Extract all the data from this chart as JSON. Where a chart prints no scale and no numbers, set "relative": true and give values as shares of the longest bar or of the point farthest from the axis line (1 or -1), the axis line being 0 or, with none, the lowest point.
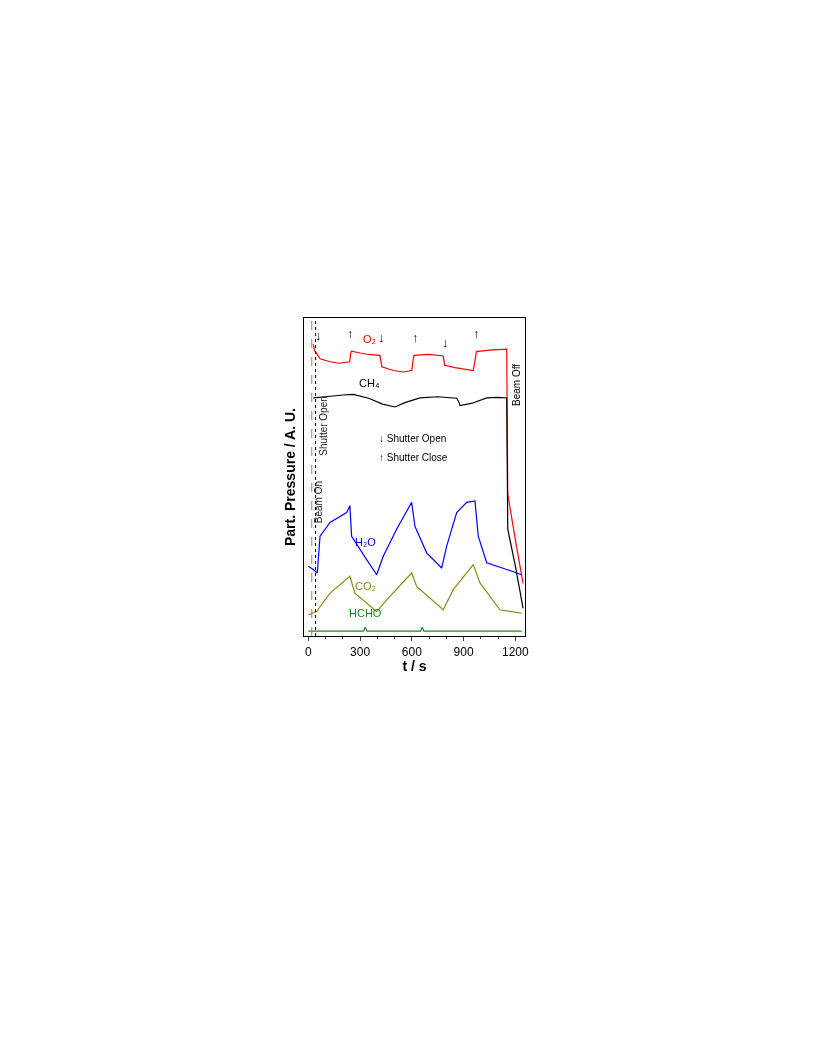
{
  "chart_data": {
    "type": "line",
    "relative": true,
    "xlabel": "t / s",
    "ylabel": "Part. Pressure / A. U.",
    "xlim": [
      -25,
      1256
    ],
    "xticks": [
      0,
      300,
      600,
      900,
      1200
    ],
    "legend": false,
    "series": [
      {
        "name": "O₂",
        "color": "#ff0000",
        "x": [
          29,
          35,
          68,
          126,
          180,
          240,
          246,
          250,
          300,
          350,
          415,
          420,
          426,
          493,
          550,
          600,
          606,
          612,
          700,
          782,
          786,
          790,
          850,
          956,
          968,
          974,
          1050,
          1150,
          1156,
          1200,
          1245
        ],
        "values": [
          1,
          0.98,
          0.95,
          0.94,
          0.935,
          0.94,
          0.97,
          0.976,
          0.97,
          0.965,
          0.962,
          0.945,
          0.923,
          0.91,
          0.905,
          0.91,
          0.94,
          0.962,
          0.965,
          0.96,
          0.945,
          0.928,
          0.92,
          0.91,
          0.95,
          0.975,
          0.98,
          0.983,
          0.486,
          0.33,
          0.18
        ]
      },
      {
        "name": "CH₄",
        "color": "#000000",
        "x": [
          29,
          100,
          200,
          260,
          350,
          430,
          502,
          560,
          647,
          750,
          860,
          875,
          879,
          950,
          1034,
          1100,
          1150,
          1153,
          1156,
          1200,
          1245
        ],
        "values": [
          0.816,
          0.82,
          0.826,
          0.828,
          0.815,
          0.795,
          0.785,
          0.8,
          0.816,
          0.82,
          0.815,
          0.8,
          0.79,
          0.798,
          0.816,
          0.818,
          0.816,
          0.6,
          0.366,
          0.24,
          0.095
        ]
      },
      {
        "name": "H₂O",
        "color": "#0000ff",
        "x": [
          0,
          29,
          52,
          68,
          126,
          222,
          241,
          251,
          338,
          396,
          435,
          512,
          599,
          618,
          686,
          773,
          802,
          860,
          918,
          966,
          985,
          1034,
          1150,
          1237
        ],
        "values": [
          0.239,
          0.228,
          0.216,
          0.342,
          0.389,
          0.423,
          0.446,
          0.342,
          0.262,
          0.21,
          0.274,
          0.366,
          0.458,
          0.376,
          0.285,
          0.233,
          0.308,
          0.423,
          0.458,
          0.463,
          0.342,
          0.251,
          0.228,
          0.21
        ]
      },
      {
        "name": "CO₂",
        "color": "#8b8b1a",
        "x": [
          0,
          48,
          126,
          241,
          270,
          396,
          473,
          599,
          628,
          782,
          840,
          956,
          995,
          1111,
          1237
        ],
        "values": [
          0.072,
          0.084,
          0.147,
          0.205,
          0.147,
          0.084,
          0.136,
          0.216,
          0.17,
          0.09,
          0.159,
          0.245,
          0.182,
          0.09,
          0.078
        ]
      },
      {
        "name": "HCHO",
        "color": "#1a8c1a",
        "x": [
          0,
          200,
          320,
          330,
          340,
          600,
          650,
          660,
          670,
          1000,
          1237
        ],
        "values": [
          0.017,
          0.017,
          0.017,
          0.03,
          0.017,
          0.017,
          0.017,
          0.03,
          0.017,
          0.017,
          0.017
        ]
      }
    ],
    "ref_lines": [
      {
        "axis": "x",
        "value": 20,
        "label": "Beam On",
        "color": "#e06060",
        "line_style": "dashed"
      },
      {
        "axis": "x",
        "value": 42,
        "label": "Shutter Open",
        "color": "#000000",
        "line_style": "dotted"
      }
    ],
    "annotations": [
      {
        "text": "↓",
        "x": 58,
        "y": 0.97
      },
      {
        "text": "↑",
        "x": 245,
        "y": 0.976
      },
      {
        "text": "↓",
        "x": 425,
        "y": 0.962
      },
      {
        "text": "↑",
        "x": 622,
        "y": 0.962
      },
      {
        "text": "↓",
        "x": 796,
        "y": 0.945
      },
      {
        "text": "↑",
        "x": 976,
        "y": 0.975
      },
      "↓ Shutter Open",
      "↑ Shutter Close",
      "Beam Off"
    ]
  }
}
